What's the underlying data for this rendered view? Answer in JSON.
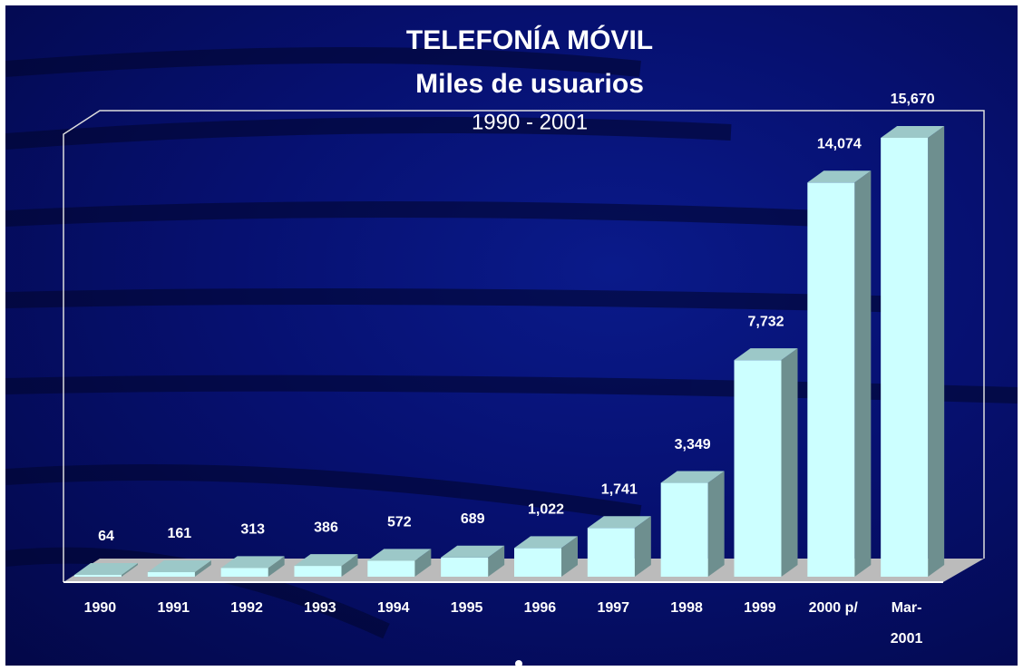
{
  "chart_data": {
    "type": "bar",
    "title": "TELEFONÍA MÓVIL",
    "subtitle": "Miles de usuarios",
    "period": "1990 - 2001",
    "categories": [
      "1990",
      "1991",
      "1992",
      "1993",
      "1994",
      "1995",
      "1996",
      "1997",
      "1998",
      "1999",
      "2000 p/",
      "Mar-2001"
    ],
    "values": [
      64,
      161,
      313,
      386,
      572,
      689,
      1022,
      1741,
      3349,
      7732,
      14074,
      15670
    ],
    "value_labels": [
      "64",
      "161",
      "313",
      "386",
      "572",
      "689",
      "1,022",
      "1,741",
      "3,349",
      "7,732",
      "14,074",
      "15,670"
    ],
    "color": "#ccffff"
  }
}
